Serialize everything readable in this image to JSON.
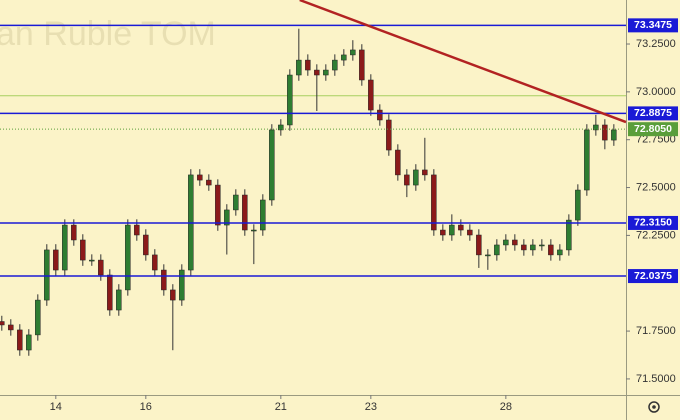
{
  "chart_data": {
    "type": "candlestick",
    "watermark": "an Ruble TOM",
    "up_color": "#2e7d32",
    "down_color": "#8b1a1a",
    "xlim": [
      -0.24,
      13.67
    ],
    "ylim": [
      71.416,
      73.48
    ],
    "xticks": [
      {
        "value": 1,
        "label": "14"
      },
      {
        "value": 3,
        "label": "16"
      },
      {
        "value": 6,
        "label": "21"
      },
      {
        "value": 8,
        "label": "23"
      },
      {
        "value": 11,
        "label": "28"
      }
    ],
    "yticks": [
      {
        "value": 71.5,
        "label": "71.5000"
      },
      {
        "value": 71.75,
        "label": "71.7500"
      },
      {
        "value": 72.25,
        "label": "72.2500"
      },
      {
        "value": 72.5,
        "label": "72.5000"
      },
      {
        "value": 72.75,
        "label": "72.7500"
      },
      {
        "value": 73.0,
        "label": "73.0000"
      },
      {
        "value": 73.25,
        "label": "73.2500"
      }
    ],
    "levels": [
      {
        "value": 73.3475,
        "label": "73.3475"
      },
      {
        "value": 72.8875,
        "label": "72.8875"
      },
      {
        "value": 72.315,
        "label": "72.3150"
      },
      {
        "value": 72.0375,
        "label": "72.0375"
      }
    ],
    "level_color": "#1a1ad6",
    "current_price": {
      "value": 72.805,
      "label": "72.8050",
      "color": "#5a9e3a"
    },
    "reference_line": {
      "value": 72.98,
      "color": "#a8d060"
    },
    "trendline": {
      "x": [
        6.42,
        13.67
      ],
      "values": [
        73.48,
        72.842
      ],
      "color": "#b22222"
    },
    "x": [
      -0.2,
      0,
      0.2,
      0.4,
      0.6,
      0.8,
      1,
      1.2,
      1.4,
      1.6,
      1.8,
      2,
      2.2,
      2.4,
      2.6,
      2.8,
      3,
      3.2,
      3.4,
      3.6,
      3.8,
      4,
      4.2,
      4.4,
      4.6,
      4.8,
      5,
      5.2,
      5.4,
      5.6,
      5.8,
      6,
      6.2,
      6.4,
      6.6,
      6.8,
      7,
      7.2,
      7.4,
      7.6,
      7.8,
      8,
      8.2,
      8.4,
      8.6,
      8.8,
      9,
      9.2,
      9.4,
      9.6,
      9.8,
      10,
      10.2,
      10.4,
      10.6,
      10.8,
      11,
      11.2,
      11.4,
      11.6,
      11.8,
      12,
      12.2,
      12.4,
      12.6,
      12.8,
      13,
      13.2,
      13.4
    ],
    "open": [
      71.8,
      71.782,
      71.756,
      71.651,
      71.73,
      71.912,
      72.174,
      72.069,
      72.304,
      72.226,
      72.121,
      72.121,
      72.043,
      71.86,
      71.965,
      72.304,
      72.252,
      72.148,
      72.069,
      71.965,
      71.912,
      72.069,
      72.566,
      72.539,
      72.513,
      72.304,
      72.383,
      72.461,
      72.278,
      72.278,
      72.435,
      72.801,
      72.827,
      73.088,
      73.166,
      73.114,
      73.088,
      73.114,
      73.166,
      73.193,
      73.219,
      73.062,
      72.905,
      72.853,
      72.696,
      72.566,
      72.513,
      72.592,
      72.566,
      72.278,
      72.252,
      72.304,
      72.278,
      72.252,
      72.148,
      72.148,
      72.2,
      72.226,
      72.2,
      72.174,
      72.2,
      72.2,
      72.148,
      72.174,
      72.33,
      72.487,
      72.801,
      72.827,
      72.748
    ],
    "high": [
      71.83,
      71.812,
      71.786,
      71.76,
      71.942,
      72.204,
      72.204,
      72.334,
      72.334,
      72.256,
      72.151,
      72.151,
      72.073,
      71.995,
      72.334,
      72.334,
      72.282,
      72.178,
      72.099,
      71.995,
      72.099,
      72.596,
      72.596,
      72.569,
      72.543,
      72.413,
      72.491,
      72.491,
      72.308,
      72.465,
      72.831,
      72.857,
      73.118,
      73.33,
      73.196,
      73.144,
      73.144,
      73.196,
      73.223,
      73.27,
      73.249,
      73.092,
      72.935,
      72.883,
      72.726,
      72.596,
      72.622,
      72.76,
      72.596,
      72.308,
      72.36,
      72.334,
      72.308,
      72.282,
      72.178,
      72.23,
      72.256,
      72.256,
      72.23,
      72.23,
      72.23,
      72.23,
      72.204,
      72.36,
      72.517,
      72.831,
      72.88,
      72.857,
      72.831
    ],
    "low": [
      71.752,
      71.726,
      71.621,
      71.621,
      71.7,
      71.882,
      72.039,
      72.039,
      72.196,
      72.091,
      72.091,
      72.013,
      71.83,
      71.83,
      71.935,
      72.222,
      72.118,
      72.039,
      71.935,
      71.65,
      71.882,
      72.039,
      72.509,
      72.483,
      72.274,
      72.15,
      72.353,
      72.248,
      72.1,
      72.248,
      72.405,
      72.771,
      72.797,
      73.058,
      73.084,
      72.9,
      73.058,
      73.084,
      73.136,
      73.163,
      73.032,
      72.875,
      72.823,
      72.666,
      72.536,
      72.45,
      72.483,
      72.536,
      72.248,
      72.222,
      72.222,
      72.248,
      72.222,
      72.08,
      72.07,
      72.118,
      72.17,
      72.17,
      72.144,
      72.144,
      72.17,
      72.118,
      72.118,
      72.144,
      72.3,
      72.457,
      72.771,
      72.7,
      72.718
    ],
    "close": [
      71.782,
      71.756,
      71.651,
      71.73,
      71.912,
      72.174,
      72.069,
      72.304,
      72.226,
      72.121,
      72.121,
      72.043,
      71.86,
      71.965,
      72.304,
      72.252,
      72.148,
      72.069,
      71.965,
      71.912,
      72.069,
      72.566,
      72.539,
      72.513,
      72.304,
      72.383,
      72.461,
      72.278,
      72.278,
      72.435,
      72.801,
      72.827,
      73.088,
      73.166,
      73.114,
      73.088,
      73.114,
      73.166,
      73.193,
      73.219,
      73.062,
      72.905,
      72.853,
      72.696,
      72.566,
      72.513,
      72.592,
      72.566,
      72.278,
      72.252,
      72.304,
      72.278,
      72.252,
      72.148,
      72.148,
      72.2,
      72.226,
      72.2,
      72.174,
      72.2,
      72.2,
      72.148,
      72.174,
      72.33,
      72.487,
      72.801,
      72.827,
      72.748,
      72.801
    ]
  }
}
